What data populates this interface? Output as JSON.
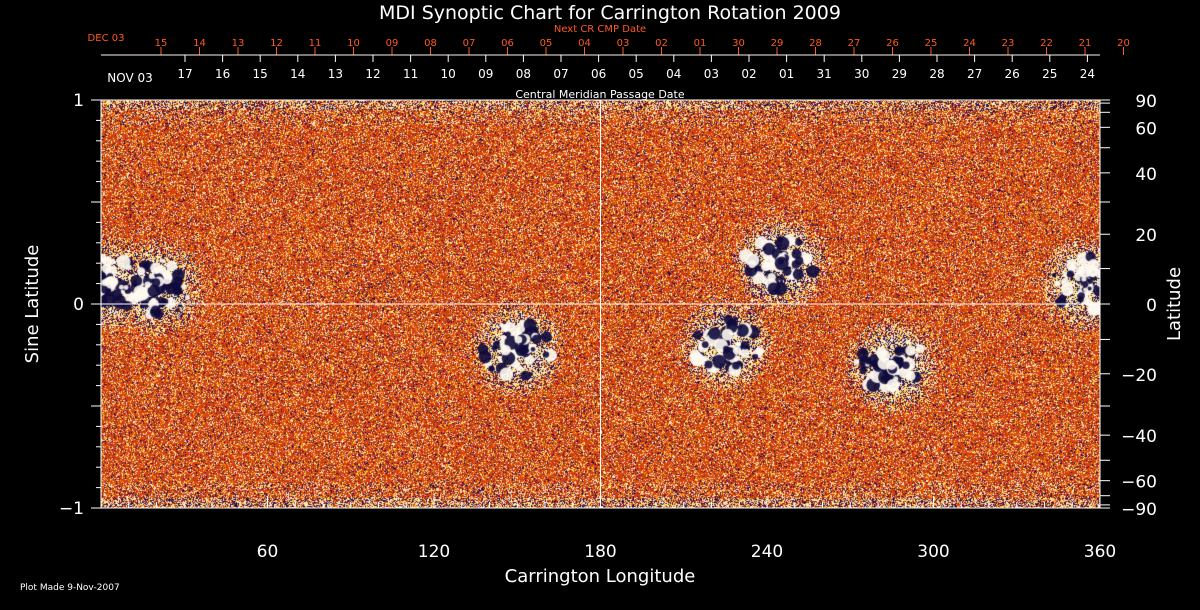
{
  "chart_data": {
    "type": "heatmap",
    "title": "MDI Synoptic Chart for Carrington Rotation 2009",
    "xlabel": "Carrington Longitude",
    "ylabel_left": "Sine Latitude",
    "ylabel_right": "Latitude",
    "xlim": [
      0,
      360
    ],
    "ylim": [
      -1,
      1
    ],
    "x_ticks": [
      60,
      120,
      180,
      240,
      300,
      360
    ],
    "y_ticks_left": [
      {
        "value": 1,
        "label": "1"
      },
      {
        "value": 0,
        "label": "0"
      },
      {
        "value": -1,
        "label": "−1"
      }
    ],
    "y_ticks_right": [
      {
        "deg": 90,
        "label": "90"
      },
      {
        "deg": 60,
        "label": "60"
      },
      {
        "deg": 40,
        "label": "40"
      },
      {
        "deg": 20,
        "label": "20"
      },
      {
        "deg": 0,
        "label": "0"
      },
      {
        "deg": -20,
        "label": "−20"
      },
      {
        "deg": -40,
        "label": "−40"
      },
      {
        "deg": -60,
        "label": "−60"
      },
      {
        "deg": -90,
        "label": "−90"
      }
    ],
    "grid_lines": {
      "longitude": 180,
      "sine_latitude": 0
    },
    "next_cr_axis": {
      "caption": "Next CR CMP Date",
      "color": "#ff5a1e",
      "first_label": "DEC 03",
      "labels": [
        "15",
        "14",
        "13",
        "12",
        "11",
        "10",
        "09",
        "08",
        "07",
        "06",
        "05",
        "04",
        "03",
        "02",
        "01",
        "30",
        "29",
        "28",
        "27",
        "26",
        "25",
        "24",
        "23",
        "22",
        "21",
        "20"
      ]
    },
    "cmp_axis": {
      "caption": "Central Meridian Passage Date",
      "first_label": "NOV 03",
      "labels": [
        "17",
        "16",
        "15",
        "14",
        "13",
        "12",
        "11",
        "10",
        "09",
        "08",
        "07",
        "06",
        "05",
        "04",
        "03",
        "02",
        "01",
        "31",
        "30",
        "29",
        "28",
        "27",
        "26",
        "25",
        "24"
      ]
    },
    "colors": {
      "background": "#c03210",
      "positive": "#ffffff",
      "negative": "#0a0a40",
      "axes": "#ffffff"
    },
    "active_regions": [
      {
        "lon": 3,
        "sinlat": 0.1,
        "polarity": "mixed"
      },
      {
        "lon": 20,
        "sinlat": 0.08,
        "polarity": "positive"
      },
      {
        "lon": 150,
        "sinlat": -0.22,
        "polarity": "mixed"
      },
      {
        "lon": 225,
        "sinlat": -0.2,
        "polarity": "mixed"
      },
      {
        "lon": 245,
        "sinlat": 0.2,
        "polarity": "mixed"
      },
      {
        "lon": 285,
        "sinlat": -0.3,
        "polarity": "mixed"
      },
      {
        "lon": 355,
        "sinlat": 0.1,
        "polarity": "mixed"
      }
    ]
  },
  "footer": {
    "plot_made": "Plot Made  9-Nov-2007"
  }
}
